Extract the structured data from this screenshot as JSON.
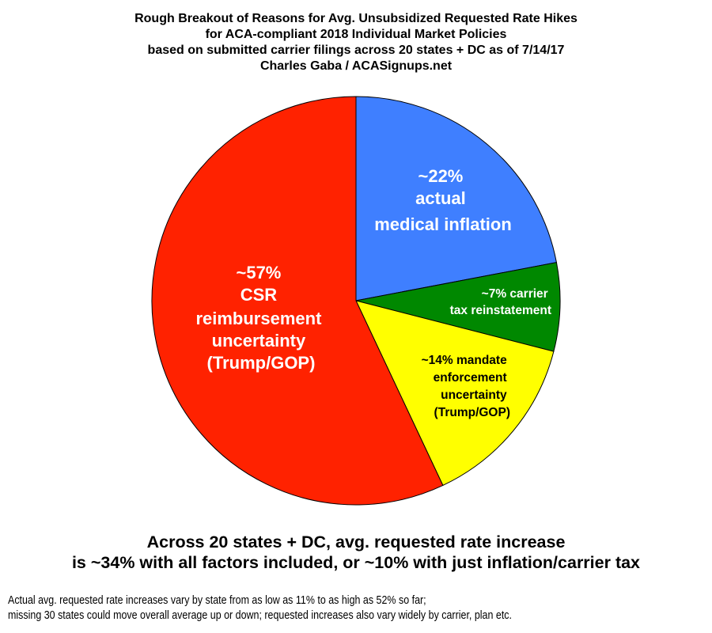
{
  "chart_data": {
    "type": "pie",
    "title": [
      "Rough Breakout of Reasons for Avg. Unsubsidized Requested Rate Hikes",
      "for ACA-compliant 2018 Individual Market Policies",
      "based on submitted carrier filings across 20 states + DC as of 7/14/17",
      "Charles Gaba / ACASignups.net"
    ],
    "start": "12 o'clock, clockwise",
    "slices": [
      {
        "value": 22,
        "color": "#3F7FFF",
        "text_color": "#FFFFFF",
        "label": [
          "~22%",
          "actual",
          "medical inflation"
        ]
      },
      {
        "value": 7,
        "color": "#008800",
        "text_color": "#FFFFFF",
        "label": [
          "~7% carrier",
          "tax reinstatement"
        ]
      },
      {
        "value": 14,
        "color": "#FFFF00",
        "text_color": "#000000",
        "label": [
          "~14% mandate",
          "enforcement",
          "uncertainty",
          "(Trump/GOP)"
        ]
      },
      {
        "value": 57,
        "color": "#FF2200",
        "text_color": "#FFFFFF",
        "label": [
          "~57%",
          "CSR",
          "reimbursement",
          "uncertainty",
          "(Trump/GOP)"
        ]
      }
    ]
  },
  "summary": [
    "Across 20 states + DC, avg. requested rate increase",
    "is ~34% with all factors included, or ~10% with just inflation/carrier tax"
  ],
  "footnote": [
    "Actual avg. requested rate increases vary by state from as low as 11% to as high as 52% so far;",
    "missing 30 states could move overall average up or down; requested increases also vary widely by carrier, plan etc."
  ]
}
